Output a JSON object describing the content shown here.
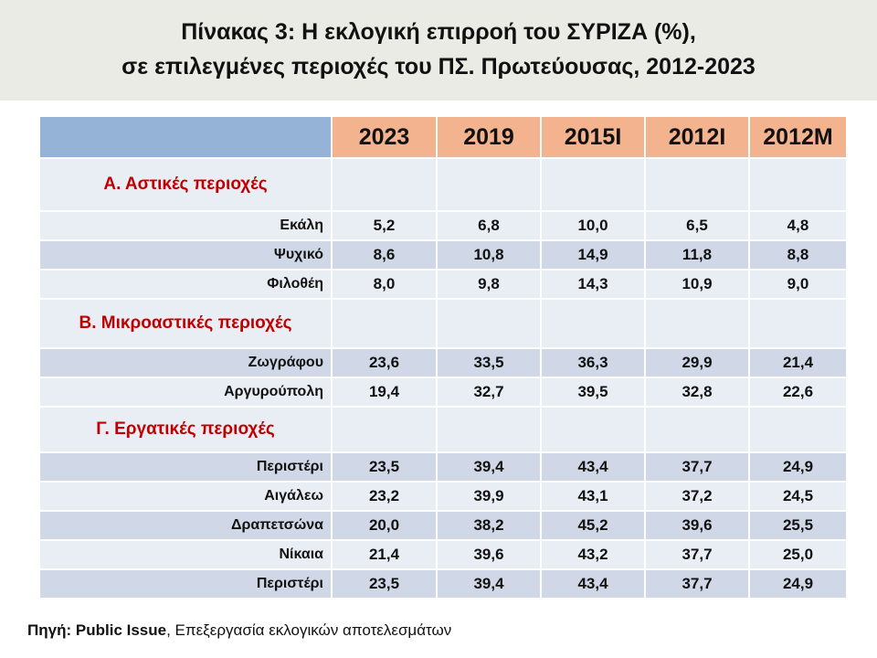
{
  "title": {
    "lines": [
      "Πίνακας 3: Η εκλογική επιρροή του ΣΥΡΙΖΑ (%),",
      "σε επιλεγμένες περιοχές του ΠΣ. Πρωτεύουσας, 2012-2023"
    ]
  },
  "table": {
    "header": [
      "2023",
      "2019",
      "2015Ι",
      "2012Ι",
      "2012Μ"
    ],
    "sections": [
      {
        "title": "Α. Αστικές περιοχές",
        "rows": [
          {
            "name": "Εκάλη",
            "values": [
              "5,2",
              "6,8",
              "10,0",
              "6,5",
              "4,8"
            ]
          },
          {
            "name": "Ψυχικό",
            "values": [
              "8,6",
              "10,8",
              "14,9",
              "11,8",
              "8,8"
            ]
          },
          {
            "name": "Φιλοθέη",
            "values": [
              "8,0",
              "9,8",
              "14,3",
              "10,9",
              "9,0"
            ]
          }
        ]
      },
      {
        "title": "Β. Μικροαστικές περιοχές",
        "rows": [
          {
            "name": "Ζωγράφου",
            "values": [
              "23,6",
              "33,5",
              "36,3",
              "29,9",
              "21,4"
            ]
          },
          {
            "name": "Αργυρούπολη",
            "values": [
              "19,4",
              "32,7",
              "39,5",
              "32,8",
              "22,6"
            ]
          }
        ]
      },
      {
        "title": "Γ. Εργατικές περιοχές",
        "rows": [
          {
            "name": "Περιστέρι",
            "values": [
              "23,5",
              "39,4",
              "43,4",
              "37,7",
              "24,9"
            ]
          },
          {
            "name": "Αιγάλεω",
            "values": [
              "23,2",
              "39,9",
              "43,1",
              "37,2",
              "24,5"
            ]
          },
          {
            "name": "Δραπετσώνα",
            "values": [
              "20,0",
              "38,2",
              "45,2",
              "39,6",
              "25,5"
            ]
          },
          {
            "name": "Νίκαια",
            "values": [
              "21,4",
              "39,6",
              "43,2",
              "37,7",
              "25,0"
            ]
          },
          {
            "name": "Περιστέρι",
            "values": [
              "23,5",
              "39,4",
              "43,4",
              "37,7",
              "24,9"
            ]
          }
        ]
      }
    ]
  },
  "source": {
    "label": "Πηγή: Public Issue",
    "text": ", Επεξεργασία εκλογικών αποτελεσμάτων"
  }
}
